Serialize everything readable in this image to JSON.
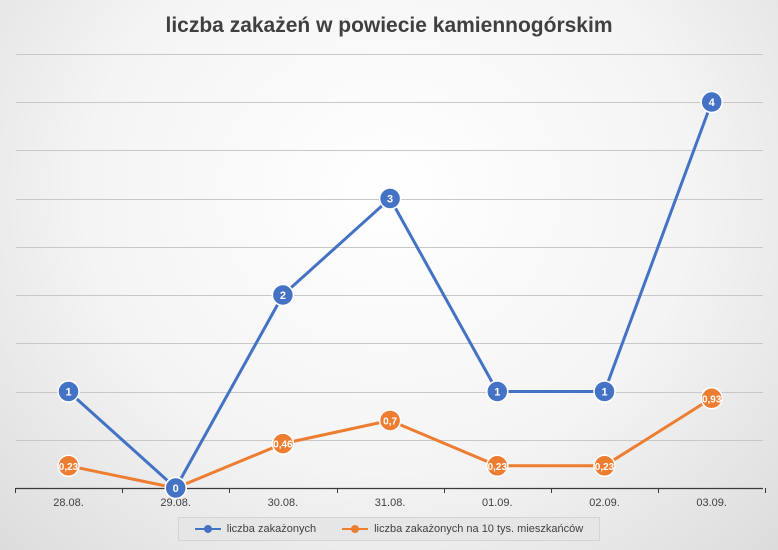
{
  "chart_data": {
    "type": "line",
    "title": "liczba zakażeń w powiecie kamiennogórskim",
    "categories": [
      "28.08.",
      "29.08.",
      "30.08.",
      "31.08.",
      "01.09.",
      "02.09.",
      "03.09."
    ],
    "series": [
      {
        "name": "liczba zakażonych",
        "color": "#4472c4",
        "values": [
          1,
          0,
          2,
          3,
          1,
          1,
          4
        ],
        "labels": [
          "1",
          "0",
          "2",
          "3",
          "1",
          "1",
          "4"
        ]
      },
      {
        "name": "liczba zakażonych na 10 tys. mieszkańców",
        "color": "#ed7d31",
        "values": [
          0.23,
          0,
          0.46,
          0.7,
          0.23,
          0.23,
          0.93
        ],
        "labels": [
          "0,23",
          "0",
          "0,46",
          "0,7",
          "0,23",
          "0,23",
          "0,93"
        ]
      }
    ],
    "ylim": [
      0,
      4.5
    ],
    "gridline_step": 0.5,
    "grid": true,
    "legend": "bottom"
  }
}
